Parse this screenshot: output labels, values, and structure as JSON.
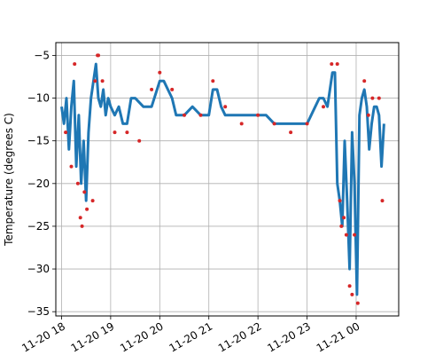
{
  "chart_data": {
    "type": "line",
    "ylabel": "Temperature (degrees C)",
    "xlabel": "",
    "grid": true,
    "legend": "none",
    "xlim": [
      "2014-11-20 17:53",
      "2014-11-21 00:52"
    ],
    "ylim": [
      -35.5,
      -3.5
    ],
    "x_ticks": [
      {
        "value": "2014-11-20 18:00",
        "label": "11-20 18"
      },
      {
        "value": "2014-11-20 19:00",
        "label": "11-20 19"
      },
      {
        "value": "2014-11-20 20:00",
        "label": "11-20 20"
      },
      {
        "value": "2014-11-20 21:00",
        "label": "11-20 21"
      },
      {
        "value": "2014-11-20 22:00",
        "label": "11-20 22"
      },
      {
        "value": "2014-11-20 23:00",
        "label": "11-20 23"
      },
      {
        "value": "2014-11-21 00:00",
        "label": "11-21 00"
      }
    ],
    "y_ticks": [
      -35,
      -30,
      -25,
      -20,
      -15,
      -10,
      -5
    ],
    "series": [
      {
        "color": "#1f77b4",
        "line": true,
        "markers": false,
        "x": [
          "2014-11-20 18:00",
          "2014-11-20 18:03",
          "2014-11-20 18:06",
          "2014-11-20 18:09",
          "2014-11-20 18:12",
          "2014-11-20 18:15",
          "2014-11-20 18:18",
          "2014-11-20 18:21",
          "2014-11-20 18:24",
          "2014-11-20 18:27",
          "2014-11-20 18:30",
          "2014-11-20 18:33",
          "2014-11-20 18:36",
          "2014-11-20 18:39",
          "2014-11-20 18:42",
          "2014-11-20 18:45",
          "2014-11-20 18:48",
          "2014-11-20 18:51",
          "2014-11-20 18:54",
          "2014-11-20 18:57",
          "2014-11-20 19:00",
          "2014-11-20 19:05",
          "2014-11-20 19:10",
          "2014-11-20 19:15",
          "2014-11-20 19:20",
          "2014-11-20 19:25",
          "2014-11-20 19:30",
          "2014-11-20 19:40",
          "2014-11-20 19:50",
          "2014-11-20 20:00",
          "2014-11-20 20:05",
          "2014-11-20 20:10",
          "2014-11-20 20:15",
          "2014-11-20 20:20",
          "2014-11-20 20:30",
          "2014-11-20 20:40",
          "2014-11-20 20:50",
          "2014-11-20 21:00",
          "2014-11-20 21:05",
          "2014-11-20 21:10",
          "2014-11-20 21:15",
          "2014-11-20 21:20",
          "2014-11-20 21:30",
          "2014-11-20 21:40",
          "2014-11-20 21:50",
          "2014-11-20 22:00",
          "2014-11-20 22:10",
          "2014-11-20 22:20",
          "2014-11-20 22:30",
          "2014-11-20 22:40",
          "2014-11-20 22:50",
          "2014-11-20 23:00",
          "2014-11-20 23:05",
          "2014-11-20 23:10",
          "2014-11-20 23:15",
          "2014-11-20 23:20",
          "2014-11-20 23:25",
          "2014-11-20 23:28",
          "2014-11-20 23:31",
          "2014-11-20 23:34",
          "2014-11-20 23:37",
          "2014-11-20 23:40",
          "2014-11-20 23:43",
          "2014-11-20 23:46",
          "2014-11-20 23:49",
          "2014-11-20 23:52",
          "2014-11-20 23:55",
          "2014-11-20 23:58",
          "2014-11-21 00:01",
          "2014-11-21 00:04",
          "2014-11-21 00:07",
          "2014-11-21 00:10",
          "2014-11-21 00:13",
          "2014-11-21 00:16",
          "2014-11-21 00:19",
          "2014-11-21 00:22",
          "2014-11-21 00:25",
          "2014-11-21 00:28",
          "2014-11-21 00:31",
          "2014-11-21 00:34"
        ],
        "y": [
          -11,
          -13,
          -10,
          -16,
          -11,
          -8,
          -18,
          -12,
          -20,
          -15,
          -22,
          -14,
          -10,
          -8,
          -6,
          -10,
          -11,
          -9,
          -12,
          -10,
          -11,
          -12,
          -11,
          -13,
          -13,
          -10,
          -10,
          -11,
          -11,
          -8,
          -8,
          -9,
          -10,
          -12,
          -12,
          -11,
          -12,
          -12,
          -9,
          -9,
          -11,
          -12,
          -12,
          -12,
          -12,
          -12,
          -12,
          -13,
          -13,
          -13,
          -13,
          -13,
          -12,
          -11,
          -10,
          -10,
          -11,
          -9,
          -7,
          -7,
          -20,
          -22,
          -25,
          -15,
          -22,
          -30,
          -14,
          -20,
          -33,
          -12,
          -10,
          -9,
          -11,
          -16,
          -13,
          -11,
          -11,
          -12,
          -18,
          -13
        ]
      },
      {
        "color": "#d62728",
        "line": false,
        "markers": true,
        "x": [
          "2014-11-20 18:05",
          "2014-11-20 18:12",
          "2014-11-20 18:16",
          "2014-11-20 18:20",
          "2014-11-20 18:23",
          "2014-11-20 18:25",
          "2014-11-20 18:28",
          "2014-11-20 18:31",
          "2014-11-20 18:38",
          "2014-11-20 18:41",
          "2014-11-20 18:44",
          "2014-11-20 18:45",
          "2014-11-20 18:50",
          "2014-11-20 19:05",
          "2014-11-20 19:20",
          "2014-11-20 19:35",
          "2014-11-20 19:50",
          "2014-11-20 20:00",
          "2014-11-20 20:15",
          "2014-11-20 20:30",
          "2014-11-20 20:50",
          "2014-11-20 21:05",
          "2014-11-20 21:20",
          "2014-11-20 21:40",
          "2014-11-20 22:00",
          "2014-11-20 22:20",
          "2014-11-20 22:40",
          "2014-11-20 23:00",
          "2014-11-20 23:20",
          "2014-11-20 23:30",
          "2014-11-20 23:37",
          "2014-11-20 23:40",
          "2014-11-20 23:42",
          "2014-11-20 23:45",
          "2014-11-20 23:48",
          "2014-11-20 23:52",
          "2014-11-20 23:55",
          "2014-11-20 23:58",
          "2014-11-21 00:02",
          "2014-11-21 00:10",
          "2014-11-21 00:15",
          "2014-11-21 00:20",
          "2014-11-21 00:28",
          "2014-11-21 00:32"
        ],
        "y": [
          -14,
          -18,
          -6,
          -20,
          -24,
          -25,
          -21,
          -23,
          -22,
          -8,
          -5,
          -5,
          -8,
          -14,
          -14,
          -15,
          -9,
          -7,
          -9,
          -12,
          -12,
          -8,
          -11,
          -13,
          -12,
          -13,
          -14,
          -13,
          -11,
          -6,
          -6,
          -22,
          -25,
          -24,
          -26,
          -32,
          -33,
          -26,
          -34,
          -8,
          -12,
          -10,
          -10,
          -22
        ]
      }
    ]
  }
}
